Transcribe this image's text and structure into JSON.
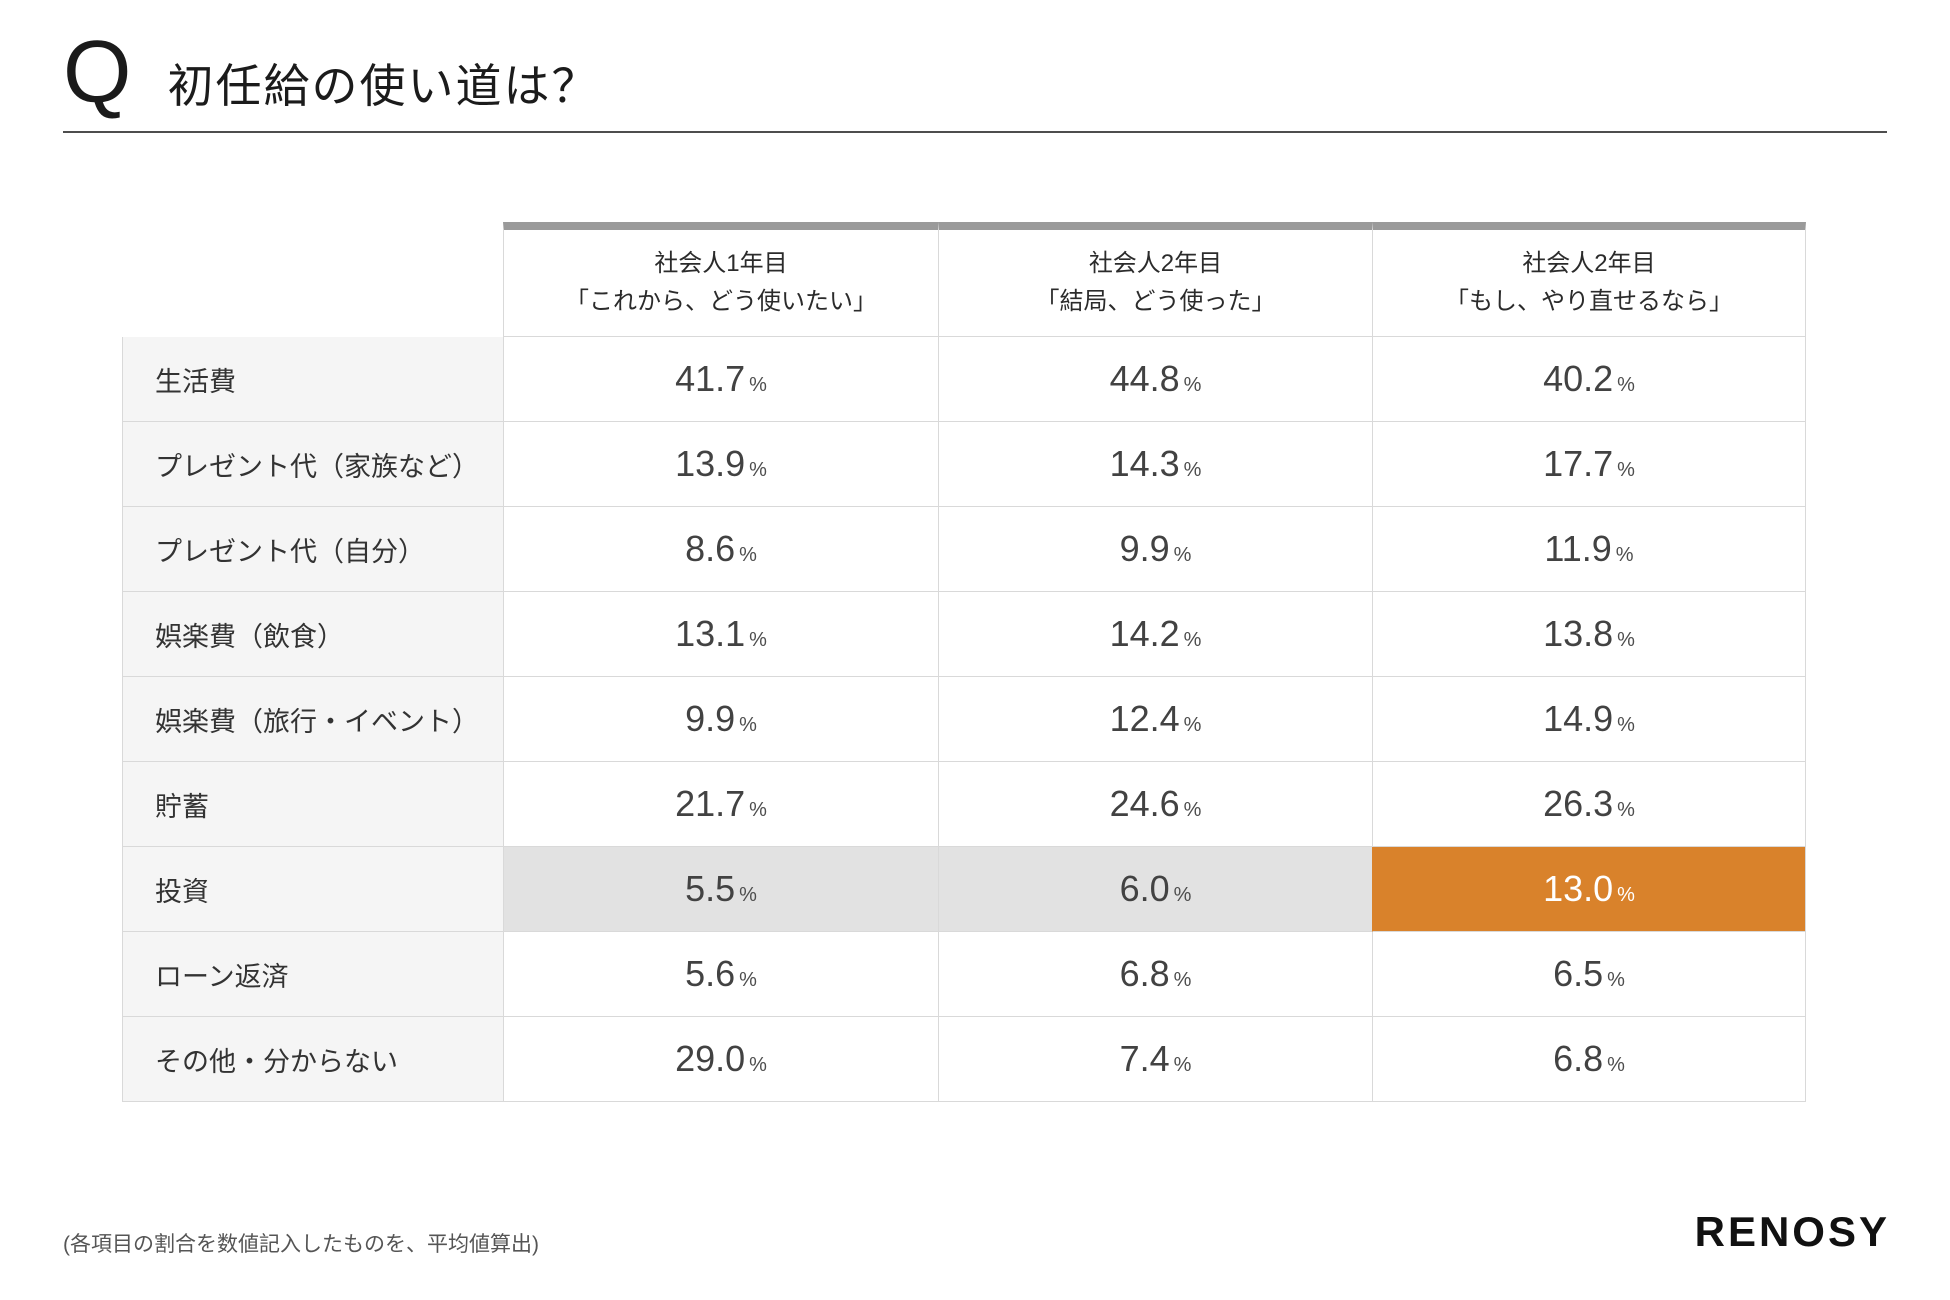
{
  "page": {
    "q_mark": "Q",
    "title": "初任給の使い道は？"
  },
  "chart_data": {
    "type": "table",
    "title": "初任給の使い道は？",
    "unit": "%",
    "columns": [
      {
        "line1": "社会人1年目",
        "line2": "「これから、どう使いたい」"
      },
      {
        "line1": "社会人2年目",
        "line2": "「結局、どう使った」"
      },
      {
        "line1": "社会人2年目",
        "line2": "「もし、やり直せるなら」"
      }
    ],
    "rows": [
      {
        "label": "生活費",
        "values": [
          "41.7",
          "44.8",
          "40.2"
        ]
      },
      {
        "label": "プレゼント代（家族など）",
        "values": [
          "13.9",
          "14.3",
          "17.7"
        ]
      },
      {
        "label": "プレゼント代（自分）",
        "values": [
          "8.6",
          "9.9",
          "11.9"
        ]
      },
      {
        "label": "娯楽費（飲食）",
        "values": [
          "13.1",
          "14.2",
          "13.8"
        ]
      },
      {
        "label": "娯楽費（旅行・イベント）",
        "values": [
          "9.9",
          "12.4",
          "14.9"
        ]
      },
      {
        "label": "貯蓄",
        "values": [
          "21.7",
          "24.6",
          "26.3"
        ]
      },
      {
        "label": "投資",
        "values": [
          "5.5",
          "6.0",
          "13.0"
        ],
        "highlight": [
          "gray",
          "gray",
          "orange"
        ]
      },
      {
        "label": "ローン返済",
        "values": [
          "5.6",
          "6.8",
          "6.5"
        ]
      },
      {
        "label": "その他・分からない",
        "values": [
          "29.0",
          "7.4",
          "6.8"
        ]
      }
    ]
  },
  "footer": {
    "note": "(各項目の割合を数値記入したものを、平均値算出)",
    "logo": "RENOSY"
  },
  "colors": {
    "accent_orange": "#d9822b",
    "highlight_gray": "#e2e2e2",
    "label_bg": "#f5f5f5",
    "header_accent": "#9a9a9a",
    "border": "#d9d9d9"
  }
}
